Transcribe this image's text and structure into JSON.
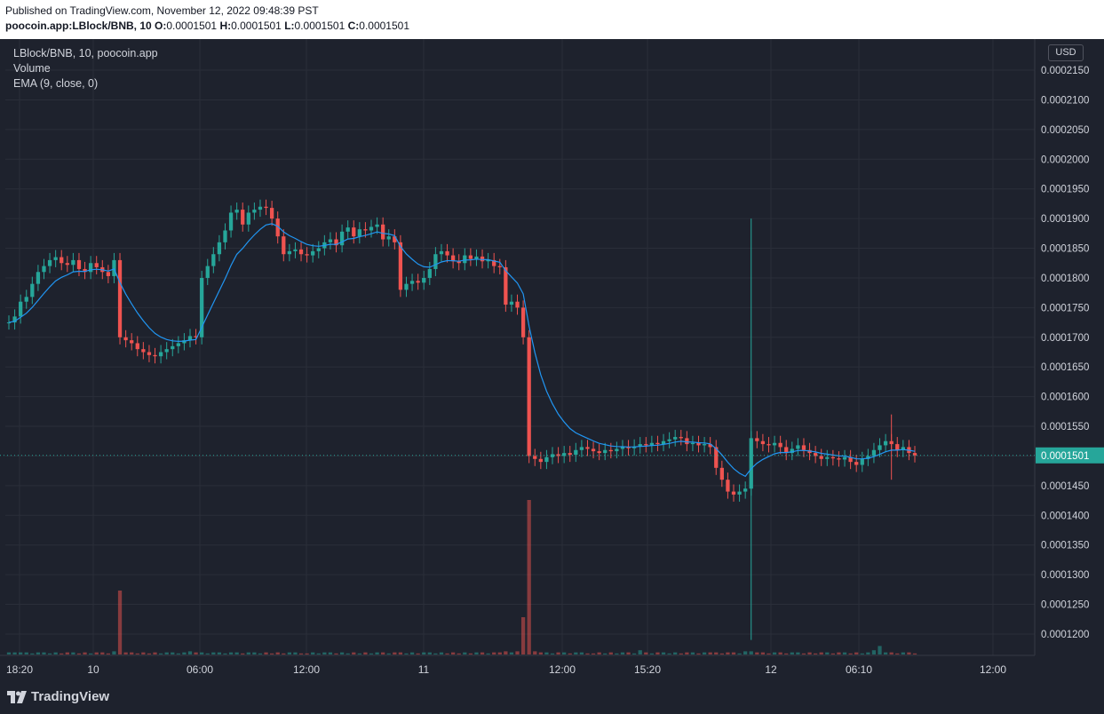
{
  "header": {
    "published": "Published on TradingView.com, November 12, 2022 09:48:39 PST",
    "symbol": "poocoin.app:LBlock/BNB, 10",
    "o_label": "O:",
    "o_value": "0.0001501",
    "h_label": "H:",
    "h_value": "0.0001501",
    "l_label": "L:",
    "l_value": "0.0001501",
    "c_label": "C:",
    "c_value": "0.0001501"
  },
  "legend": {
    "title": "LBlock/BNB, 10, poocoin.app",
    "volume": "Volume",
    "ema": "EMA (9, close, 0)"
  },
  "currency_button": "USD",
  "footer": {
    "brand": "TradingView"
  },
  "colors": {
    "up": "#26a69a",
    "down": "#ef5350",
    "ema": "#2196f3",
    "price_line": "#26a69a",
    "grid": "#2a2e39",
    "background": "#1e222d"
  },
  "chart_data": {
    "type": "candlestick",
    "ylim": [
      0.000117,
      0.000218
    ],
    "y_ticks": [
      "0.0002150",
      "0.0002100",
      "0.0002050",
      "0.0002000",
      "0.0001950",
      "0.0001900",
      "0.0001850",
      "0.0001800",
      "0.0001750",
      "0.0001700",
      "0.0001650",
      "0.0001600",
      "0.0001550",
      "0.0001500",
      "0.0001450",
      "0.0001400",
      "0.0001350",
      "0.0001300",
      "0.0001250",
      "0.0001200"
    ],
    "x_ticks": [
      "18:20",
      "10",
      "06:00",
      "12:00",
      "11",
      "12:00",
      "15:20",
      "12",
      "06:10",
      "12:00"
    ],
    "last_price": "0.0001501",
    "series": [
      {
        "name": "LBlock/BNB",
        "close": [
          0.0001725,
          0.0001735,
          0.000176,
          0.0001768,
          0.000179,
          0.000181,
          0.000182,
          0.000183,
          0.0001835,
          0.0001825,
          0.0001822,
          0.000183,
          0.0001815,
          0.000181,
          0.0001825,
          0.0001818,
          0.000181,
          0.0001803,
          0.000183,
          0.00017,
          0.0001695,
          0.000169,
          0.000168,
          0.0001675,
          0.000167,
          0.0001668,
          0.0001675,
          0.000168,
          0.0001685,
          0.000169,
          0.0001695,
          0.0001702,
          0.00017,
          0.00018,
          0.000182,
          0.000184,
          0.000186,
          0.000188,
          0.000191,
          0.0001915,
          0.000189,
          0.000191,
          0.0001915,
          0.000192,
          0.0001918,
          0.00019,
          0.000187,
          0.000184,
          0.0001845,
          0.0001848,
          0.000184,
          0.0001838,
          0.0001845,
          0.000185,
          0.000186,
          0.0001865,
          0.0001855,
          0.0001878,
          0.0001885,
          0.000187,
          0.0001882,
          0.000188,
          0.0001886,
          0.000189,
          0.0001865,
          0.000187,
          0.000186,
          0.000178,
          0.000179,
          0.0001795,
          0.0001792,
          0.00018,
          0.0001815,
          0.000184,
          0.0001845,
          0.0001838,
          0.0001828,
          0.0001825,
          0.0001838,
          0.0001832,
          0.0001836,
          0.0001828,
          0.000183,
          0.000182,
          0.0001818,
          0.0001755,
          0.000176,
          0.000175,
          0.00017,
          0.00015,
          0.0001495,
          0.000149,
          0.0001498,
          0.0001503,
          0.00015,
          0.0001505,
          0.0001502,
          0.000151,
          0.0001515,
          0.0001512,
          0.0001508,
          0.0001505,
          0.000151,
          0.0001508,
          0.0001512,
          0.0001515,
          0.0001513,
          0.0001516,
          0.000152,
          0.0001518,
          0.0001522,
          0.000152,
          0.0001525,
          0.0001528,
          0.0001532,
          0.000153,
          0.000152,
          0.0001522,
          0.0001518,
          0.000152,
          0.0001515,
          0.000148,
          0.000146,
          0.000144,
          0.0001435,
          0.000144,
          0.0001445,
          0.000153,
          0.0001525,
          0.000152,
          0.0001518,
          0.0001522,
          0.0001515,
          0.0001505,
          0.0001512,
          0.0001518,
          0.000151,
          0.0001505,
          0.00015,
          0.0001495,
          0.0001498,
          0.0001496,
          0.0001494,
          0.0001498,
          0.000149,
          0.0001485,
          0.0001495,
          0.00015,
          0.000151,
          0.0001518,
          0.0001525,
          0.000152,
          0.000151,
          0.0001515,
          0.0001505,
          0.0001501
        ]
      },
      {
        "name": "Volume",
        "values": [
          2,
          2,
          2,
          2,
          1,
          2,
          2,
          1,
          2,
          1,
          2,
          2,
          1,
          2,
          1,
          2,
          2,
          1,
          3,
          60,
          2,
          2,
          1,
          2,
          1,
          2,
          1,
          2,
          2,
          1,
          2,
          3,
          2,
          2,
          1,
          2,
          2,
          1,
          2,
          2,
          1,
          2,
          2,
          1,
          2,
          1,
          2,
          1,
          2,
          2,
          1,
          1,
          2,
          1,
          2,
          2,
          1,
          2,
          1,
          2,
          1,
          2,
          1,
          2,
          2,
          1,
          2,
          2,
          1,
          2,
          1,
          2,
          2,
          1,
          2,
          1,
          2,
          1,
          2,
          1,
          2,
          2,
          1,
          2,
          2,
          3,
          2,
          3,
          35,
          145,
          3,
          2,
          2,
          1,
          2,
          2,
          1,
          2,
          2,
          1,
          1,
          2,
          1,
          2,
          1,
          2,
          2,
          1,
          4,
          2,
          1,
          2,
          2,
          1,
          2,
          1,
          2,
          2,
          1,
          2,
          2,
          2,
          1,
          2,
          2,
          1,
          3,
          3,
          2,
          2,
          1,
          2,
          2,
          1,
          2,
          2,
          1,
          2,
          1,
          2,
          2,
          1,
          2,
          2,
          1,
          2,
          1,
          2,
          4,
          8,
          2,
          2,
          1,
          2,
          2,
          1
        ]
      }
    ]
  }
}
